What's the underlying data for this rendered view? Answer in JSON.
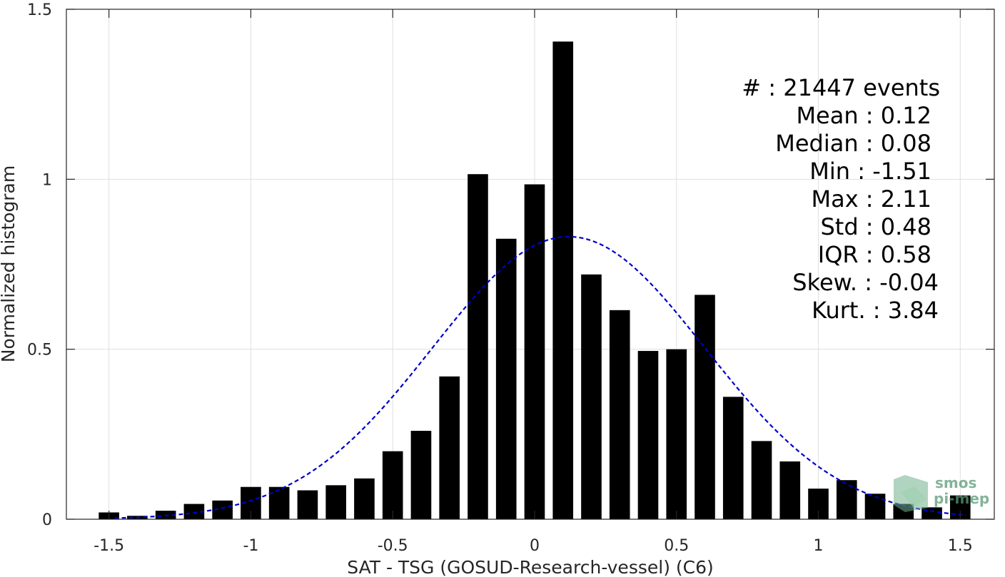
{
  "chart_data": {
    "type": "bar",
    "xlabel": "SAT - TSG (GOSUD-Research-vessel) (C6)",
    "ylabel": "Normalized histogram",
    "xlim": [
      -1.65,
      1.62
    ],
    "ylim": [
      0,
      1.5
    ],
    "xticks": [
      -1.5,
      -1,
      -0.5,
      0,
      0.5,
      1,
      1.5
    ],
    "xtick_labels": [
      "-1.5",
      "-1",
      "-0.5",
      "0",
      "0.5",
      "1",
      "1.5"
    ],
    "yticks": [
      0,
      0.5,
      1,
      1.5
    ],
    "ytick_labels": [
      "0",
      "0.5",
      "1",
      "1.5"
    ],
    "grid": true,
    "bar_width": 0.072,
    "x": [
      -1.5,
      -1.4,
      -1.3,
      -1.2,
      -1.1,
      -1.0,
      -0.9,
      -0.8,
      -0.7,
      -0.6,
      -0.5,
      -0.4,
      -0.3,
      -0.2,
      -0.1,
      0.0,
      0.1,
      0.2,
      0.3,
      0.4,
      0.5,
      0.6,
      0.7,
      0.8,
      0.9,
      1.0,
      1.1,
      1.2,
      1.3,
      1.4,
      1.5
    ],
    "values": [
      0.02,
      0.01,
      0.025,
      0.045,
      0.055,
      0.095,
      0.095,
      0.085,
      0.1,
      0.12,
      0.2,
      0.26,
      0.42,
      1.015,
      0.825,
      0.985,
      1.405,
      0.72,
      0.615,
      0.495,
      0.5,
      0.66,
      0.36,
      0.23,
      0.17,
      0.09,
      0.115,
      0.075,
      0.045,
      0.035,
      0.07
    ],
    "fit": {
      "style": "dashed",
      "color": "#0000cc",
      "mean": 0.12,
      "std": 0.48
    },
    "bar_color": "#000000",
    "stats": [
      {
        "label": "#  : 21447 events"
      },
      {
        "label": "Mean : 0.12"
      },
      {
        "label": "Median : 0.08"
      },
      {
        "label": "Min : -1.51"
      },
      {
        "label": "Max : 2.11"
      },
      {
        "label": "Std : 0.48"
      },
      {
        "label": "IQR : 0.58"
      },
      {
        "label": "Skew. : -0.04"
      },
      {
        "label": "Kurt. : 3.84"
      }
    ]
  },
  "logo": {
    "line1": "smos",
    "line2": "pi-mep"
  }
}
